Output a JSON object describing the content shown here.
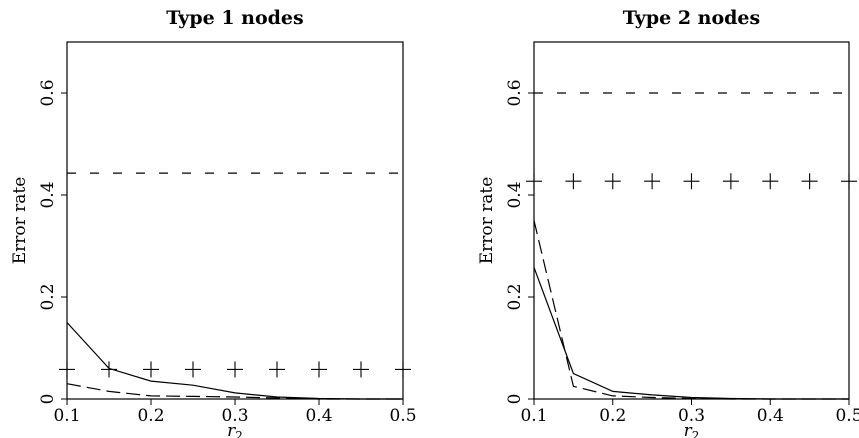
{
  "chart_data": [
    {
      "type": "line",
      "title": "Type 1 nodes",
      "xlabel": "r",
      "xlabel_sub": "2",
      "ylabel": "Error rate",
      "x": [
        0.1,
        0.15,
        0.2,
        0.25,
        0.3,
        0.35,
        0.4,
        0.45,
        0.5
      ],
      "x_ticks": [
        "0.1",
        "0.2",
        "0.3",
        "0.4",
        "0.5"
      ],
      "y_ticks": [
        "0",
        "0.2",
        "0.4",
        "0.6"
      ],
      "xlim": [
        0.1,
        0.5
      ],
      "ylim": [
        0,
        0.7
      ],
      "grid": false,
      "series": [
        {
          "style": "solid",
          "values": [
            0.15,
            0.06,
            0.035,
            0.027,
            0.012,
            0.004,
            0.001,
            0.0,
            0.0
          ]
        },
        {
          "style": "longdash",
          "values": [
            0.03,
            0.015,
            0.006,
            0.005,
            0.004,
            0.002,
            0.0,
            0.0,
            0.0
          ]
        },
        {
          "style": "dashed",
          "values": [
            0.443,
            0.443,
            0.443,
            0.443,
            0.443,
            0.443,
            0.443,
            0.443,
            0.443
          ]
        },
        {
          "style": "plus",
          "values": [
            0.058,
            0.058,
            0.058,
            0.058,
            0.058,
            0.058,
            0.058,
            0.058,
            0.058
          ]
        }
      ]
    },
    {
      "type": "line",
      "title": "Type 2 nodes",
      "xlabel": "r",
      "xlabel_sub": "2",
      "ylabel": "Error rate",
      "x": [
        0.1,
        0.15,
        0.2,
        0.25,
        0.3,
        0.35,
        0.4,
        0.45,
        0.5
      ],
      "x_ticks": [
        "0.1",
        "0.2",
        "0.3",
        "0.4",
        "0.5"
      ],
      "y_ticks": [
        "0",
        "0.2",
        "0.4",
        "0.6"
      ],
      "xlim": [
        0.1,
        0.5
      ],
      "ylim": [
        0,
        0.7
      ],
      "grid": false,
      "series": [
        {
          "style": "solid",
          "values": [
            0.258,
            0.05,
            0.015,
            0.008,
            0.003,
            0.001,
            0.0,
            0.0,
            0.0
          ]
        },
        {
          "style": "longdash",
          "values": [
            0.35,
            0.025,
            0.006,
            0.003,
            0.001,
            0.0,
            0.0,
            0.0,
            0.0
          ]
        },
        {
          "style": "dashed",
          "values": [
            0.6,
            0.6,
            0.6,
            0.6,
            0.6,
            0.6,
            0.6,
            0.6,
            0.6
          ]
        },
        {
          "style": "plus",
          "values": [
            0.427,
            0.427,
            0.427,
            0.427,
            0.427,
            0.427,
            0.427,
            0.427,
            0.427
          ]
        }
      ]
    }
  ]
}
